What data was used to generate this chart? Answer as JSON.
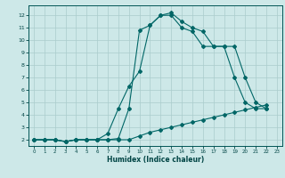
{
  "xlabel": "Humidex (Indice chaleur)",
  "background_color": "#cde8e8",
  "grid_color": "#aacccc",
  "line_color": "#006666",
  "xlim": [
    -0.5,
    23.5
  ],
  "ylim": [
    1.5,
    12.8
  ],
  "xticks": [
    0,
    1,
    2,
    3,
    4,
    5,
    6,
    7,
    8,
    9,
    10,
    11,
    12,
    13,
    14,
    15,
    16,
    17,
    18,
    19,
    20,
    21,
    22,
    23
  ],
  "yticks": [
    2,
    3,
    4,
    5,
    6,
    7,
    8,
    9,
    10,
    11,
    12
  ],
  "line1_x": [
    0,
    1,
    2,
    3,
    4,
    5,
    6,
    7,
    8,
    9,
    10,
    11,
    12,
    13,
    14,
    15,
    16,
    17,
    18,
    19,
    20,
    21,
    22
  ],
  "line1_y": [
    2,
    2,
    2,
    1.85,
    2,
    2,
    2,
    2,
    2,
    2,
    2.3,
    2.6,
    2.8,
    3.0,
    3.2,
    3.4,
    3.6,
    3.8,
    4.0,
    4.2,
    4.4,
    4.6,
    4.8
  ],
  "line2_x": [
    0,
    1,
    2,
    3,
    4,
    5,
    6,
    7,
    8,
    9,
    10,
    11,
    12,
    13,
    14,
    15,
    16,
    17,
    18,
    19,
    20,
    21,
    22
  ],
  "line2_y": [
    2,
    2,
    2,
    1.85,
    2,
    2,
    2,
    2.5,
    4.5,
    6.3,
    7.5,
    11.2,
    12.0,
    12.0,
    11.0,
    10.7,
    9.5,
    9.5,
    9.5,
    7.0,
    5.0,
    4.5,
    4.5
  ],
  "line3_x": [
    0,
    1,
    2,
    3,
    4,
    5,
    6,
    7,
    8,
    9,
    10,
    11,
    12,
    13,
    14,
    15,
    16,
    17,
    18,
    19,
    20,
    21,
    22
  ],
  "line3_y": [
    2,
    2,
    2,
    1.85,
    2,
    2,
    2,
    2,
    2.1,
    4.5,
    10.8,
    11.2,
    12.0,
    12.2,
    11.5,
    11.0,
    10.7,
    9.5,
    9.5,
    9.5,
    7.0,
    5.0,
    4.5
  ]
}
